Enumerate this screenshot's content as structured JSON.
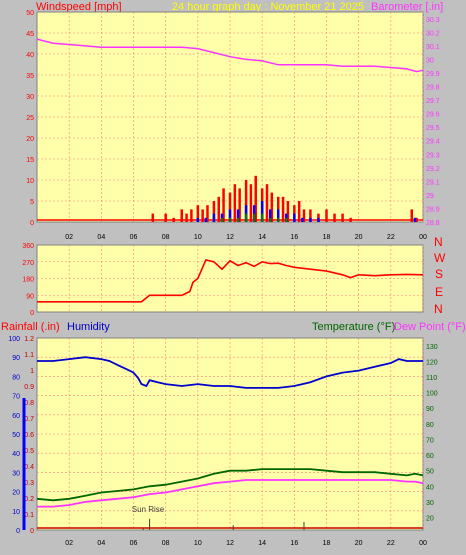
{
  "header": {
    "left_label": "Windspeed [mph]",
    "title": "24 hour graph day : November 21 2025",
    "right_label": "Barometer [.in]"
  },
  "colors": {
    "background": "#c0c0c0",
    "plot_bg": "#ffffaa",
    "grid": "#ff8080",
    "wind": "#ff0000",
    "gust_blue": "#0000ff",
    "gust_green": "#008000",
    "barometer": "#ff33ff",
    "humidity": "#0000cc",
    "temperature": "#006600",
    "dewpoint": "#ff33ff",
    "rain": "#cc0000",
    "title_yellow": "#ffff00"
  },
  "direction_labels": [
    "N",
    "W",
    "S",
    "E",
    "N"
  ],
  "panel3_labels": {
    "rainfall": "Rainfall (.in)",
    "humidity": "Humidity",
    "temperature": "Temperature (°F)",
    "dewpoint": "Dew Point (°F)"
  },
  "annotation": "Sun Rise",
  "x_ticks": [
    "02",
    "04",
    "06",
    "08",
    "10",
    "12",
    "14",
    "16",
    "18",
    "20",
    "22",
    "00"
  ],
  "chart_data": [
    {
      "type": "line",
      "x_hours": [
        0,
        24
      ],
      "y_left_ticks": [
        "0",
        "5",
        "10",
        "15",
        "20",
        "25",
        "30",
        "35",
        "40",
        "45",
        "50"
      ],
      "y_right_ticks": [
        "28.8",
        "28.9",
        "29",
        "29.1",
        "29.2",
        "29.3",
        "29.4",
        "29.5",
        "29.6",
        "29.7",
        "29.8",
        "29.9",
        "30",
        "30.1",
        "30.2",
        "30.3"
      ],
      "ylim_left": [
        0,
        50
      ],
      "ylim_right": [
        28.8,
        30.35
      ],
      "series": [
        {
          "key": "barometer",
          "x": [
            0,
            1,
            2,
            3,
            4,
            5,
            6,
            7,
            8,
            9,
            10,
            11,
            12,
            13,
            14,
            15,
            16,
            17,
            18,
            19,
            20,
            21,
            22,
            23,
            23.6,
            24
          ],
          "values": [
            30.15,
            30.12,
            30.11,
            30.1,
            30.09,
            30.09,
            30.09,
            30.09,
            30.09,
            30.09,
            30.08,
            30.05,
            30.02,
            30.0,
            29.99,
            29.96,
            29.96,
            29.96,
            29.96,
            29.95,
            29.95,
            29.95,
            29.94,
            29.93,
            29.91,
            29.92
          ]
        },
        {
          "key": "wind_gust_red",
          "x": [
            0,
            7,
            7.2,
            7.5,
            8,
            8.5,
            9,
            9.3,
            9.6,
            10,
            10.3,
            10.6,
            11,
            11.3,
            11.6,
            12,
            12.3,
            12.6,
            13,
            13.3,
            13.6,
            14,
            14.3,
            14.6,
            15,
            15.3,
            15.6,
            16,
            16.3,
            16.6,
            17,
            17.5,
            18,
            18.5,
            19,
            19.5,
            20,
            23,
            23.3,
            23.6,
            24
          ],
          "values": [
            0,
            0,
            2,
            0,
            2,
            1,
            3,
            2,
            3,
            4,
            3,
            4,
            5,
            6,
            8,
            7,
            9,
            8,
            10,
            9,
            11,
            8,
            9,
            7,
            6,
            6,
            5,
            4,
            5,
            3,
            3,
            2,
            3,
            2,
            2,
            1,
            0,
            0,
            3,
            1,
            0
          ]
        },
        {
          "key": "wind_blue",
          "x": [
            0,
            9.5,
            10,
            10.5,
            11,
            11.5,
            12,
            12.5,
            13,
            13.5,
            14,
            14.5,
            15,
            15.5,
            16,
            16.5,
            17,
            17.5,
            18,
            23.3,
            23.5,
            23.8,
            24
          ],
          "values": [
            0,
            0,
            1,
            1,
            2,
            2,
            3,
            3,
            4,
            4,
            5,
            3,
            3,
            2,
            2,
            1,
            1,
            1,
            0,
            0,
            1,
            0,
            0
          ]
        },
        {
          "key": "wind_green",
          "x": [
            0,
            11,
            11.5,
            12,
            12.5,
            13,
            13.5,
            14,
            14.5,
            15,
            15.5,
            16,
            24
          ],
          "values": [
            0,
            0,
            1,
            1,
            1,
            2,
            2,
            2,
            1,
            1,
            1,
            0,
            0
          ]
        }
      ]
    },
    {
      "type": "line",
      "y_ticks": [
        "0",
        "90",
        "180",
        "270",
        "360"
      ],
      "ylim": [
        0,
        360
      ],
      "series": [
        {
          "key": "wind_direction",
          "x": [
            0,
            6,
            6.5,
            7,
            7.3,
            8,
            9,
            9.5,
            9.7,
            10,
            10.5,
            11,
            11.5,
            12,
            12.5,
            13,
            13.5,
            14,
            14.5,
            15,
            15.5,
            16,
            17,
            18,
            19,
            19.5,
            20,
            21,
            22,
            23,
            24
          ],
          "values": [
            55,
            55,
            55,
            90,
            90,
            90,
            90,
            110,
            160,
            180,
            280,
            270,
            230,
            275,
            250,
            265,
            245,
            270,
            260,
            262,
            250,
            240,
            230,
            220,
            200,
            185,
            200,
            195,
            200,
            202,
            200
          ]
        }
      ]
    },
    {
      "type": "line",
      "y_left_outer_ticks": [
        "0",
        "10",
        "20",
        "30",
        "40",
        "50",
        "60",
        "70",
        "80",
        "90",
        "100"
      ],
      "y_left_inner_ticks": [
        "0",
        "0.1",
        "0.2",
        "0.3",
        "0.4",
        "0.5",
        "0.6",
        "0.7",
        "0.8",
        "0.9",
        "1",
        "1.1",
        "1.2"
      ],
      "y_right_ticks": [
        "20",
        "30",
        "40",
        "50",
        "60",
        "70",
        "80",
        "90",
        "100",
        "110",
        "120",
        "130"
      ],
      "ylim_humidity": [
        0,
        100
      ],
      "ylim_temperature": [
        12,
        135
      ],
      "series": [
        {
          "key": "humidity",
          "x": [
            0,
            1,
            2,
            3,
            4,
            4.5,
            5,
            5.5,
            6,
            6.3,
            6.5,
            6.8,
            7,
            7.5,
            8,
            9,
            10,
            11,
            12,
            13,
            14,
            15,
            16,
            17,
            18,
            19,
            20,
            21,
            22,
            22.5,
            23,
            23.5,
            24
          ],
          "values": [
            88,
            88,
            89,
            90,
            89,
            88,
            86,
            84,
            82,
            79,
            76,
            75,
            78,
            77,
            76,
            75,
            76,
            75,
            75,
            74,
            74,
            74,
            75,
            77,
            80,
            82,
            83,
            85,
            87,
            89,
            88,
            88,
            88
          ]
        },
        {
          "key": "temperature",
          "x": [
            0,
            1,
            2,
            3,
            4,
            5,
            6,
            7,
            8,
            9,
            10,
            11,
            12,
            13,
            14,
            15,
            16,
            17,
            18,
            19,
            20,
            21,
            22,
            23,
            23.5,
            24
          ],
          "values": [
            32,
            31,
            32,
            34,
            36,
            37,
            38,
            40,
            41,
            43,
            45,
            48,
            50,
            50,
            51,
            51,
            51,
            51,
            50,
            49,
            49,
            49,
            48,
            47,
            48,
            47
          ]
        },
        {
          "key": "dewpoint",
          "x": [
            0,
            1,
            2,
            3,
            4,
            5,
            6,
            7,
            8,
            9,
            10,
            11,
            12,
            13,
            14,
            15,
            16,
            17,
            18,
            19,
            20,
            21,
            22,
            23,
            23.5,
            24
          ],
          "values": [
            27,
            27,
            28,
            30,
            31,
            32,
            33,
            35,
            36,
            38,
            40,
            42,
            43,
            44,
            44,
            44,
            44,
            44,
            44,
            44,
            44,
            44,
            44,
            43,
            43,
            42
          ]
        },
        {
          "key": "rain_markers",
          "x": [
            6.6,
            7,
            12.2,
            16.6
          ],
          "values": [
            0.01,
            0.07,
            0.03,
            0.05
          ]
        }
      ]
    }
  ]
}
